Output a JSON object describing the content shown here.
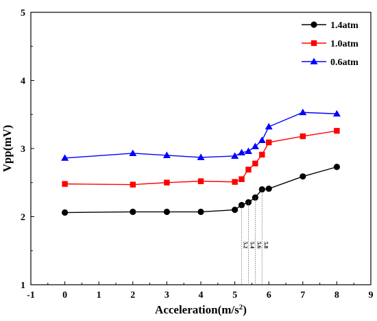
{
  "chart_data": {
    "type": "line",
    "xlabel": "Acceleration(m/s²)",
    "xlabel_parts": {
      "main": "Acceleration(m/s",
      "sup": "2",
      "tail": ")"
    },
    "ylabel": "Vpp(mV)",
    "xlim": [
      -1,
      9
    ],
    "ylim": [
      1,
      5
    ],
    "xticks": [
      -1,
      0,
      1,
      2,
      3,
      4,
      5,
      6,
      7,
      8,
      9
    ],
    "xtick_labels": [
      "-1",
      "0",
      "1",
      "2",
      "3",
      "4",
      "5",
      "6",
      "7",
      "8",
      "9"
    ],
    "yticks": [
      1,
      2,
      3,
      4,
      5
    ],
    "ytick_labels": [
      "1",
      "2",
      "3",
      "4",
      "5"
    ],
    "grid": false,
    "legend_position": "top-right",
    "x": [
      0,
      2,
      3,
      4,
      5,
      5.2,
      5.4,
      5.6,
      5.8,
      6,
      7,
      8
    ],
    "series": [
      {
        "name": "1.4atm",
        "color": "#000000",
        "marker": "circle",
        "values": [
          2.06,
          2.07,
          2.07,
          2.07,
          2.1,
          2.17,
          2.21,
          2.28,
          2.4,
          2.41,
          2.59,
          2.73
        ]
      },
      {
        "name": "1.0atm",
        "color": "#ff0000",
        "marker": "square",
        "values": [
          2.48,
          2.47,
          2.5,
          2.52,
          2.51,
          2.55,
          2.69,
          2.78,
          2.91,
          3.09,
          3.18,
          3.26
        ]
      },
      {
        "name": "0.6atm",
        "color": "#0000ff",
        "marker": "triangle",
        "values": [
          2.86,
          2.93,
          2.9,
          2.87,
          2.89,
          2.94,
          2.96,
          3.03,
          3.12,
          3.32,
          3.53,
          3.51
        ]
      }
    ],
    "annotations": [
      {
        "x": 5.2,
        "text": "5.2"
      },
      {
        "x": 5.4,
        "text": "5.4"
      },
      {
        "x": 5.6,
        "text": "5.6"
      },
      {
        "x": 5.8,
        "text": "5.8"
      }
    ]
  }
}
